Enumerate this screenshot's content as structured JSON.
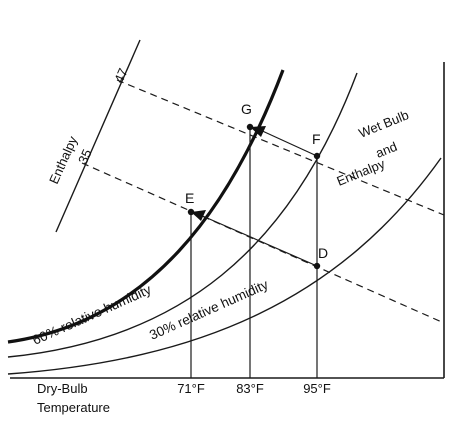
{
  "axes": {
    "x_label_line1": "Dry-Bulb",
    "x_label_line2": "Temperature",
    "enthalpy_scale_label": "Enthalpy",
    "enthalpy_ticks": [
      "47",
      "35"
    ]
  },
  "temperature_ticks": [
    "71°F",
    "83°F",
    "95°F"
  ],
  "points": {
    "D": "D",
    "E": "E",
    "F": "F",
    "G": "G"
  },
  "curves": {
    "rh60": "60% relative humidity",
    "rh30": "30% relative humidity"
  },
  "annotation": {
    "line1": "Wet Bulb",
    "line2": "and",
    "line3": "Enthalpy"
  },
  "colors": {
    "ink": "#111111",
    "line": "#1a1a1a"
  }
}
